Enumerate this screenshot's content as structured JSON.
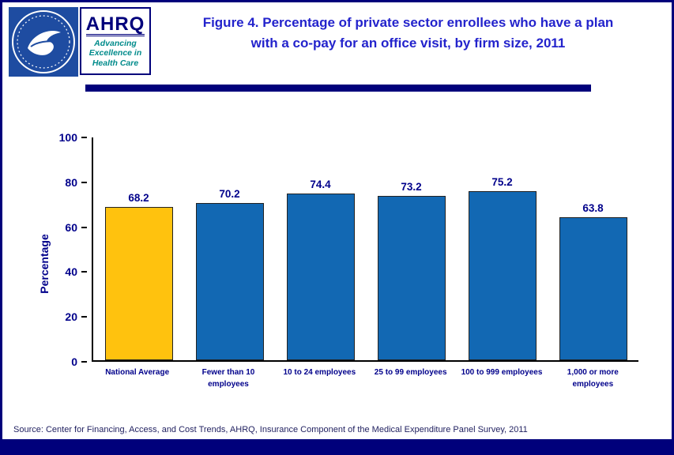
{
  "header": {
    "ahrq": {
      "acronym": "AHRQ",
      "tagline": "Advancing\nExcellence in\nHealth Care"
    },
    "title_line1": "Figure 4. Percentage of private sector enrollees who have a plan",
    "title_line2": "with a co-pay for an office visit, by firm size, 2011"
  },
  "chart_data": {
    "type": "bar",
    "title": "Figure 4. Percentage of private sector enrollees who have a plan with a co-pay for an office visit, by firm size, 2011",
    "categories": [
      "National Average",
      "Fewer than 10 employees",
      "10 to 24 employees",
      "25 to 99 employees",
      "100 to 999 employees",
      "1,000 or more employees"
    ],
    "values": [
      68.2,
      70.2,
      74.4,
      73.2,
      75.2,
      63.8
    ],
    "bar_colors": [
      "#FFC20E",
      "#1268B3",
      "#1268B3",
      "#1268B3",
      "#1268B3",
      "#1268B3"
    ],
    "xlabel": "",
    "ylabel": "Percentage",
    "ylim": [
      0,
      100
    ],
    "yticks": [
      0,
      20,
      40,
      60,
      80,
      100
    ],
    "grid": false,
    "legend": false
  },
  "colors": {
    "navy": "#00007B",
    "title_blue": "#2323CC",
    "axis_text": "#00008B",
    "bar_blue": "#1268B3",
    "bar_gold": "#FFC20E",
    "tagline_teal": "#008B8B"
  },
  "footer": {
    "source": "Source: Center for Financing, Access, and Cost Trends, AHRQ, Insurance Component of the Medical Expenditure Panel Survey, 2011"
  }
}
